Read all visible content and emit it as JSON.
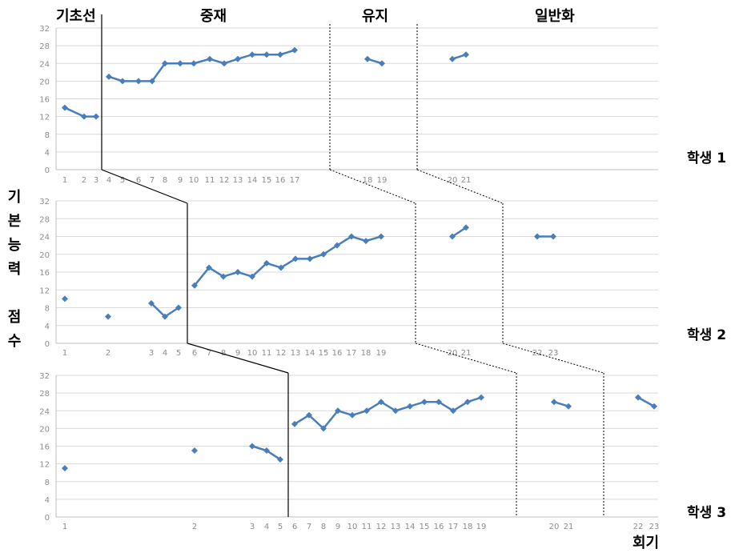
{
  "phases": [
    "기초선",
    "중재",
    "유지",
    "일반화"
  ],
  "y_axis_label": [
    "기",
    "본",
    "능",
    "력",
    "",
    "점",
    "수"
  ],
  "x_axis_label": "회기",
  "colors": {
    "series": "#4a7ebb",
    "grid": "#d9d9d9",
    "axis": "#bfbfbf",
    "tick": "#8c8c8c"
  },
  "chart_data": [
    {
      "type": "line",
      "name": "학생 1",
      "ylim": [
        0,
        32
      ],
      "yticks": [
        0,
        4,
        8,
        12,
        16,
        20,
        24,
        28,
        32
      ],
      "xticks": [
        "1",
        "2",
        "3",
        "4",
        "5",
        "6",
        "7",
        "8",
        "9",
        "10",
        "11",
        "12",
        "13",
        "14",
        "15",
        "16",
        "17",
        "18",
        "19",
        "20",
        "21"
      ],
      "segments": [
        {
          "x": [
            1,
            2,
            3
          ],
          "y": [
            14,
            12,
            12
          ]
        },
        {
          "x": [
            4,
            5,
            6,
            7,
            8,
            9,
            10,
            11,
            12,
            13,
            14,
            15,
            16,
            17
          ],
          "y": [
            21,
            20,
            20,
            20,
            24,
            24,
            24,
            25,
            24,
            25,
            26,
            26,
            26,
            27
          ]
        },
        {
          "x": [
            18,
            19
          ],
          "y": [
            25,
            24
          ]
        },
        {
          "x": [
            20,
            21
          ],
          "y": [
            25,
            26
          ]
        }
      ]
    },
    {
      "type": "line",
      "name": "학생 2",
      "ylim": [
        0,
        32
      ],
      "yticks": [
        0,
        4,
        8,
        12,
        16,
        20,
        24,
        28,
        32
      ],
      "xticks": [
        "1",
        "2",
        "3",
        "4",
        "5",
        "6",
        "7",
        "8",
        "9",
        "10",
        "11",
        "12",
        "13",
        "14",
        "15",
        "16",
        "17",
        "18",
        "19",
        "20",
        "21",
        "22",
        "23"
      ],
      "segments": [
        {
          "x": [
            1
          ],
          "y": [
            10
          ]
        },
        {
          "x": [
            2
          ],
          "y": [
            6
          ]
        },
        {
          "x": [
            3,
            4,
            5
          ],
          "y": [
            9,
            6,
            8
          ]
        },
        {
          "x": [
            6,
            7,
            8,
            9,
            10,
            11,
            12,
            13,
            14,
            15,
            16,
            17,
            18,
            19
          ],
          "y": [
            13,
            17,
            15,
            16,
            15,
            18,
            17,
            19,
            19,
            20,
            22,
            24,
            23,
            24
          ]
        },
        {
          "x": [
            20,
            21
          ],
          "y": [
            24,
            26
          ]
        },
        {
          "x": [
            22,
            23
          ],
          "y": [
            24,
            24
          ]
        }
      ]
    },
    {
      "type": "line",
      "name": "학생 3",
      "ylim": [
        0,
        32
      ],
      "yticks": [
        0,
        4,
        8,
        12,
        16,
        20,
        24,
        28,
        32
      ],
      "xticks": [
        "1",
        "2",
        "3",
        "4",
        "5",
        "6",
        "7",
        "8",
        "9",
        "10",
        "11",
        "12",
        "13",
        "14",
        "15",
        "16",
        "17",
        "18",
        "19",
        "20",
        "21",
        "22",
        "23"
      ],
      "segments": [
        {
          "x": [
            1
          ],
          "y": [
            11
          ]
        },
        {
          "x": [
            2
          ],
          "y": [
            15
          ]
        },
        {
          "x": [
            3,
            4,
            5
          ],
          "y": [
            16,
            15,
            13
          ]
        },
        {
          "x": [
            6,
            7,
            8,
            9,
            10,
            11,
            12,
            13,
            14,
            15,
            16,
            17,
            18,
            19
          ],
          "y": [
            21,
            23,
            20,
            24,
            23,
            24,
            26,
            24,
            25,
            26,
            26,
            24,
            26,
            27
          ]
        },
        {
          "x": [
            20,
            21
          ],
          "y": [
            26,
            25
          ]
        },
        {
          "x": [
            22,
            23
          ],
          "y": [
            27,
            25
          ]
        }
      ]
    }
  ]
}
